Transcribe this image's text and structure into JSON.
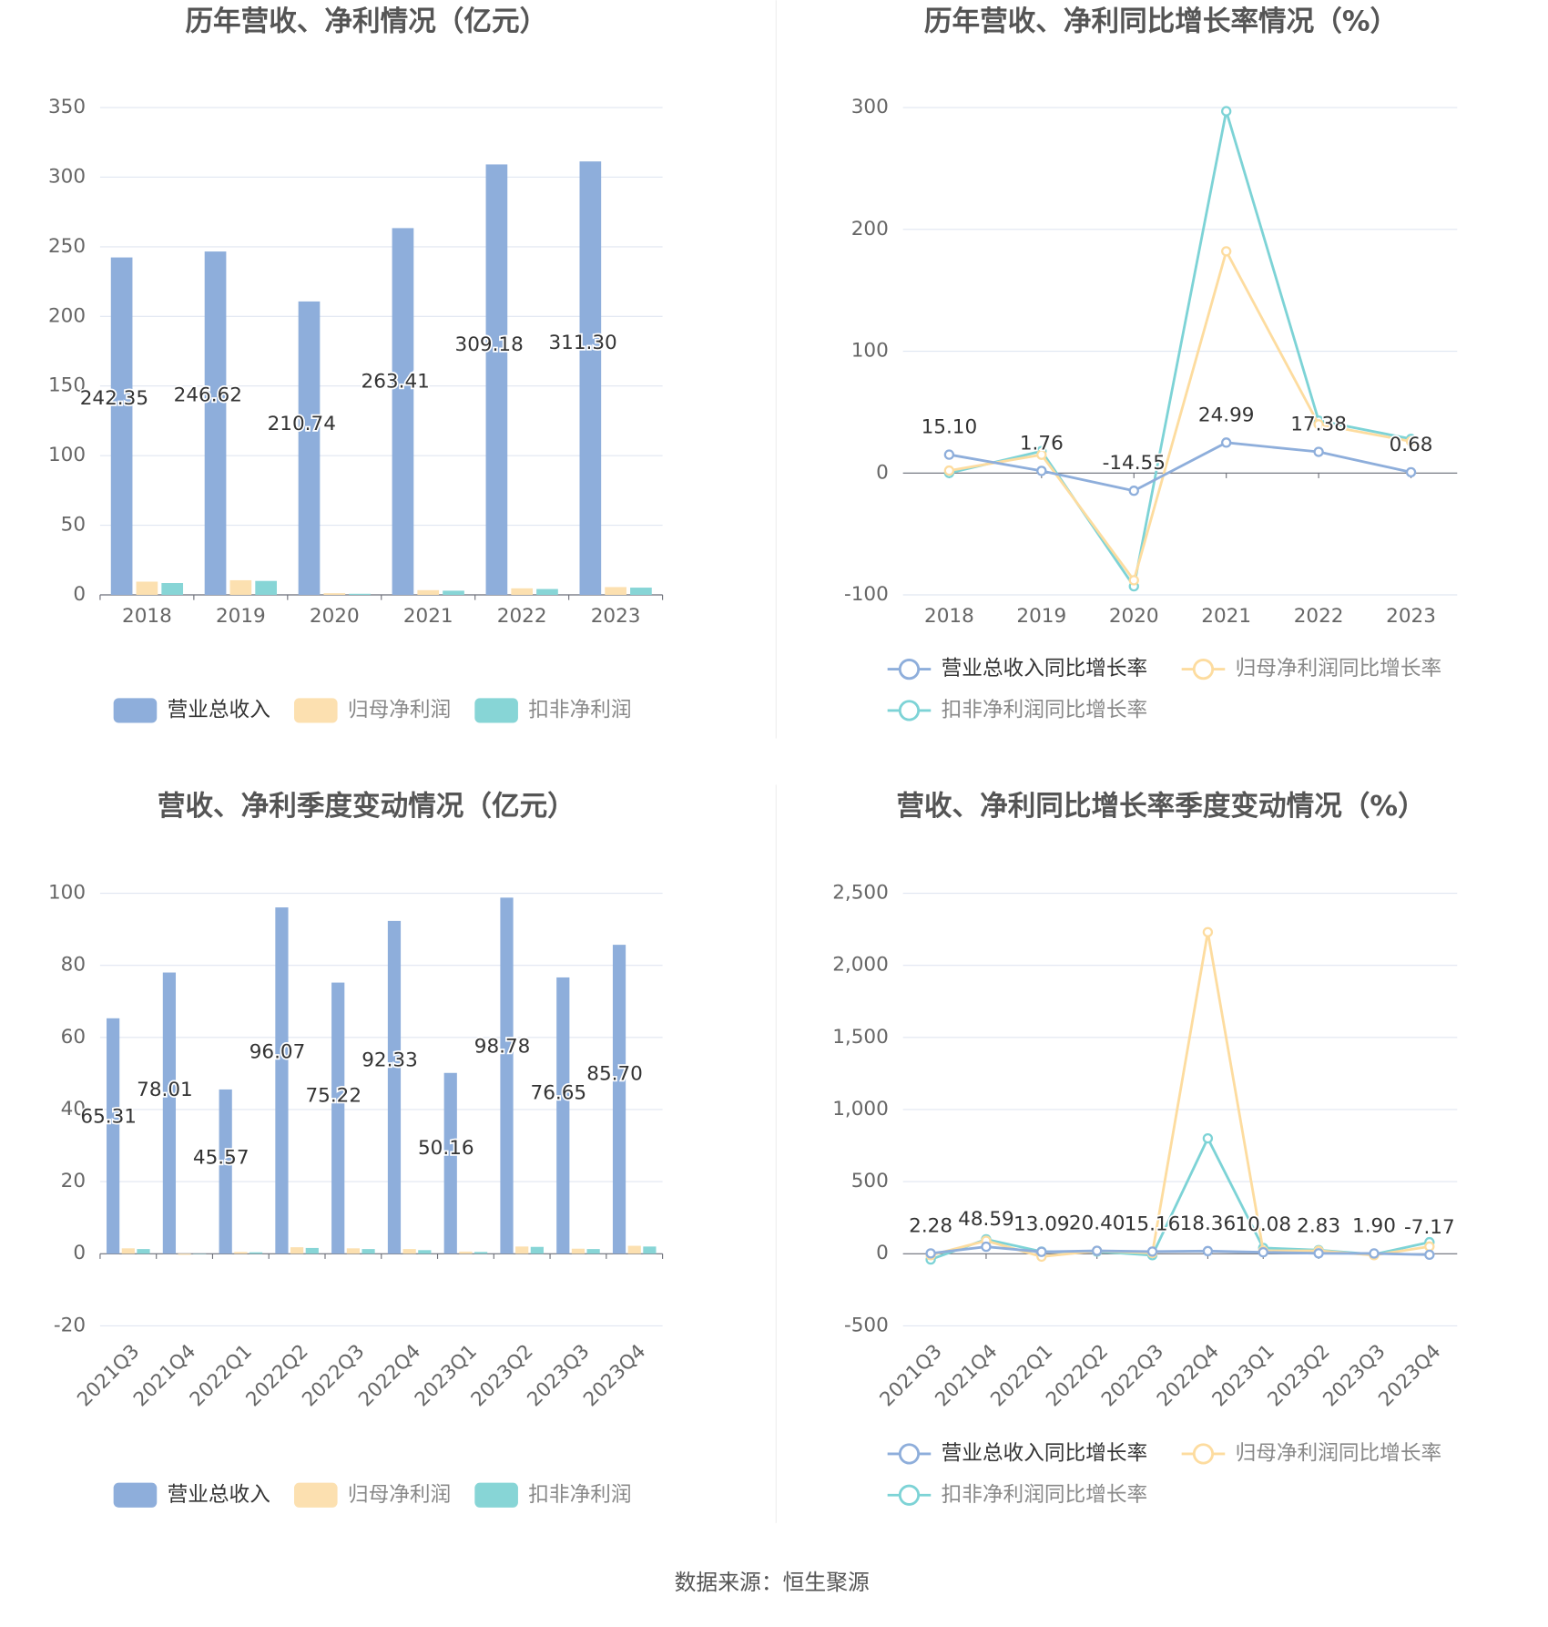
{
  "chart_data": [
    {
      "type": "bar",
      "title": "历年营收、净利情况（亿元）",
      "categories": [
        "2018",
        "2019",
        "2020",
        "2021",
        "2022",
        "2023"
      ],
      "series": [
        {
          "name": "营业总收入",
          "color": "#8eaedb",
          "values": [
            242.35,
            246.62,
            210.74,
            263.41,
            309.18,
            311.3
          ],
          "value_labels": [
            "242.35",
            "246.62",
            "210.74",
            "263.41",
            "309.18",
            "311.30"
          ]
        },
        {
          "name": "归母净利润",
          "color": "#fce0b0",
          "values": [
            9.5,
            10.5,
            1.2,
            3.4,
            4.7,
            5.6
          ]
        },
        {
          "name": "扣非净利润",
          "color": "#87d5d6",
          "values": [
            8.5,
            10.0,
            0.8,
            3.0,
            4.2,
            5.2
          ]
        }
      ],
      "ylim": [
        0,
        350
      ],
      "yticks": [
        0,
        50,
        100,
        150,
        200,
        250,
        300,
        350
      ],
      "grid": true
    },
    {
      "type": "line",
      "title": "历年营收、净利同比增长率情况（%）",
      "categories": [
        "2018",
        "2019",
        "2020",
        "2021",
        "2022",
        "2023"
      ],
      "series": [
        {
          "name": "营业总收入同比增长率",
          "color": "#8eaedb",
          "values": [
            15.1,
            1.76,
            -14.55,
            24.99,
            17.38,
            0.68
          ],
          "value_labels": [
            "15.10",
            "1.76",
            "-14.55",
            "24.99",
            "17.38",
            "0.68"
          ]
        },
        {
          "name": "归母净利润同比增长率",
          "color": "#fddc9f",
          "values": [
            2,
            15,
            -88,
            182,
            40,
            26
          ]
        },
        {
          "name": "扣非净利润同比增长率",
          "color": "#7dd3d6",
          "values": [
            0,
            18,
            -93,
            297,
            43,
            28
          ]
        }
      ],
      "ylim": [
        -100,
        300
      ],
      "yticks": [
        -100,
        0,
        100,
        200,
        300
      ],
      "grid": true
    },
    {
      "type": "bar",
      "title": "营收、净利季度变动情况（亿元）",
      "categories": [
        "2021Q3",
        "2021Q4",
        "2022Q1",
        "2022Q2",
        "2022Q3",
        "2022Q4",
        "2023Q1",
        "2023Q2",
        "2023Q3",
        "2023Q4"
      ],
      "series": [
        {
          "name": "营业总收入",
          "color": "#8eaedb",
          "values": [
            65.31,
            78.01,
            45.57,
            96.07,
            75.22,
            92.33,
            50.16,
            98.78,
            76.65,
            85.7
          ],
          "value_labels": [
            "65.31",
            "78.01",
            "45.57",
            "96.07",
            "75.22",
            "92.33",
            "50.16",
            "98.78",
            "76.65",
            "85.70"
          ]
        },
        {
          "name": "归母净利润",
          "color": "#fce0b0",
          "values": [
            1.5,
            -0.3,
            0.5,
            1.8,
            1.5,
            1.3,
            0.6,
            2.0,
            1.4,
            2.2
          ]
        },
        {
          "name": "扣非净利润",
          "color": "#87d5d6",
          "values": [
            1.3,
            -0.1,
            0.4,
            1.6,
            1.3,
            1.0,
            0.5,
            1.9,
            1.3,
            2.0
          ]
        }
      ],
      "ylim": [
        -20,
        100
      ],
      "yticks": [
        -20,
        0,
        20,
        40,
        60,
        80,
        100
      ],
      "grid": true
    },
    {
      "type": "line",
      "title": "营收、净利同比增长率季度变动情况（%）",
      "categories": [
        "2021Q3",
        "2021Q4",
        "2022Q1",
        "2022Q2",
        "2022Q3",
        "2022Q4",
        "2023Q1",
        "2023Q2",
        "2023Q3",
        "2023Q4"
      ],
      "series": [
        {
          "name": "营业总收入同比增长率",
          "color": "#8eaedb",
          "values": [
            2.28,
            48.59,
            13.09,
            20.4,
            15.16,
            18.36,
            10.08,
            2.83,
            1.9,
            -7.17
          ],
          "value_labels": [
            "2.28",
            "48.59",
            "13.09",
            "20.40",
            "15.16",
            "18.36",
            "10.08",
            "2.83",
            "1.90",
            "-7.17"
          ]
        },
        {
          "name": "归母净利润同比增长率",
          "color": "#fddc9f",
          "values": [
            -10,
            90,
            -20,
            20,
            5,
            2230,
            20,
            20,
            -10,
            50
          ]
        },
        {
          "name": "扣非净利润同比增长率",
          "color": "#7dd3d6",
          "values": [
            -40,
            100,
            15,
            15,
            -10,
            800,
            40,
            25,
            -5,
            80
          ]
        }
      ],
      "ylim": [
        -500,
        2500
      ],
      "yticks": [
        -500,
        0,
        500,
        {
          "value": 1000,
          "label": "1,000"
        },
        {
          "value": 1500,
          "label": "1,500"
        },
        {
          "value": 2000,
          "label": "2,000"
        },
        {
          "value": 2500,
          "label": "2,500"
        }
      ],
      "grid": true
    }
  ],
  "source": "数据来源：恒生聚源"
}
